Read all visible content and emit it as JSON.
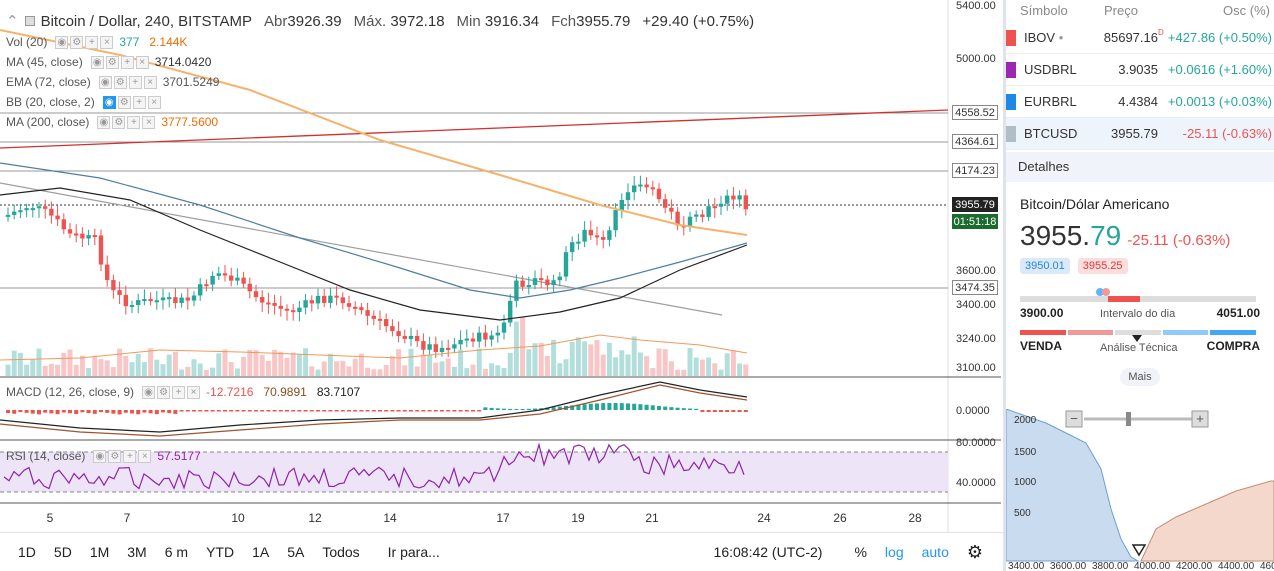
{
  "header": {
    "symbol_title": "Bitcoin / Dollar, 240, BITSTAMP",
    "open_label": "Abr",
    "open_value": "3926.39",
    "high_label": "Máx.",
    "high_value": "3972.18",
    "low_label": "Min",
    "low_value": "3916.34",
    "close_label": "Fch",
    "close_value": "3955.79",
    "change": "+29.40 (+0.75%)"
  },
  "indicators": [
    {
      "label": "Vol (20)",
      "values": [
        "377",
        "2.144K"
      ],
      "colors": [
        "#26a69a",
        "#ef6c00"
      ]
    },
    {
      "label": "MA (45, close)",
      "values": [
        "3714.0420"
      ],
      "colors": [
        "#333333"
      ]
    },
    {
      "label": "EMA (72, close)",
      "values": [
        "3701.5249"
      ],
      "colors": [
        "#555555"
      ]
    },
    {
      "label": "BB (20, close, 2)",
      "values": [],
      "colors": []
    },
    {
      "label": "MA (200, close)",
      "values": [
        "3777.5600"
      ],
      "colors": [
        "#ef6c00"
      ]
    }
  ],
  "macd": {
    "label": "MACD (12, 26, close, 9)",
    "values": [
      "-12.7216",
      "70.9891",
      "83.7107"
    ],
    "colors": [
      "#ef5350",
      "#8d4b1c",
      "#222222"
    ]
  },
  "rsi": {
    "label": "RSI (14, close)",
    "value": "57.5177"
  },
  "price_axis": [
    "5400.00",
    "5000.00",
    "4558.52",
    "4364.61",
    "4174.23",
    "3955.79",
    "01:51:18",
    "3600.00",
    "3474.35",
    "3400.00",
    "3240.00",
    "3100.00"
  ],
  "macd_axis": [
    "0.0000"
  ],
  "rsi_axis": [
    "80.0000",
    "40.0000"
  ],
  "time_axis": [
    "5",
    "7",
    "10",
    "12",
    "14",
    "17",
    "19",
    "21",
    "24",
    "26",
    "28"
  ],
  "bottom_bar": {
    "timeframes": [
      "1D",
      "5D",
      "1M",
      "3M",
      "6 m",
      "YTD",
      "1A",
      "5A",
      "Todos"
    ],
    "goto": "Ir para...",
    "clock": "16:08:42 (UTC-2)",
    "percent": "%",
    "log": "log",
    "auto": "auto"
  },
  "watchlist": {
    "headers": [
      "Símbolo",
      "Preço",
      "Osc (%)"
    ],
    "rows": [
      {
        "symbol": "IBOV",
        "marker": "•",
        "price": "85697.16",
        "price_flag": "D",
        "change": "+427.86 (+0.50%)",
        "flag_color": "#ef5350",
        "trend": "up"
      },
      {
        "symbol": "USDBRL",
        "marker": "",
        "price": "3.9035",
        "price_flag": "",
        "change": "+0.0616 (+1.60%)",
        "flag_color": "#9c27b0",
        "trend": "up"
      },
      {
        "symbol": "EURBRL",
        "marker": "",
        "price": "4.4384",
        "price_flag": "",
        "change": "+0.0013 (+0.03%)",
        "flag_color": "#1e88e5",
        "trend": "up"
      },
      {
        "symbol": "BTCUSD",
        "marker": "",
        "price": "3955.79",
        "price_flag": "",
        "change": "-25.11 (-0.63%)",
        "flag_color": "#b0bec5",
        "trend": "down"
      }
    ]
  },
  "details": {
    "section_title": "Detalhes",
    "name": "Bitcoin/Dólar Americano",
    "price_main": "3955.",
    "price_decimals": "79",
    "change": "-25.11 (-0.63%)",
    "bid": "3950.01",
    "ask": "3955.25",
    "day_low": "3900.00",
    "day_range_label": "Intervalo do dia",
    "day_high": "4051.00",
    "sell_label": "VENDA",
    "analysis_label": "Análise Técnica",
    "buy_label": "COMPRA",
    "more_button": "Mais"
  },
  "depth_chart": {
    "y_ticks": [
      "2000",
      "1500",
      "1000",
      "500"
    ],
    "x_ticks": [
      "3400.00",
      "3600.00",
      "3800.00",
      "4000.00",
      "4200.00",
      "4400.00",
      "460"
    ]
  },
  "colors": {
    "up": "#26a69a",
    "down": "#ef5350",
    "accent": "#2196f3",
    "ma200": "#f5b26b",
    "bid_area": "#c8dbef",
    "ask_area": "#f4d8cc"
  }
}
